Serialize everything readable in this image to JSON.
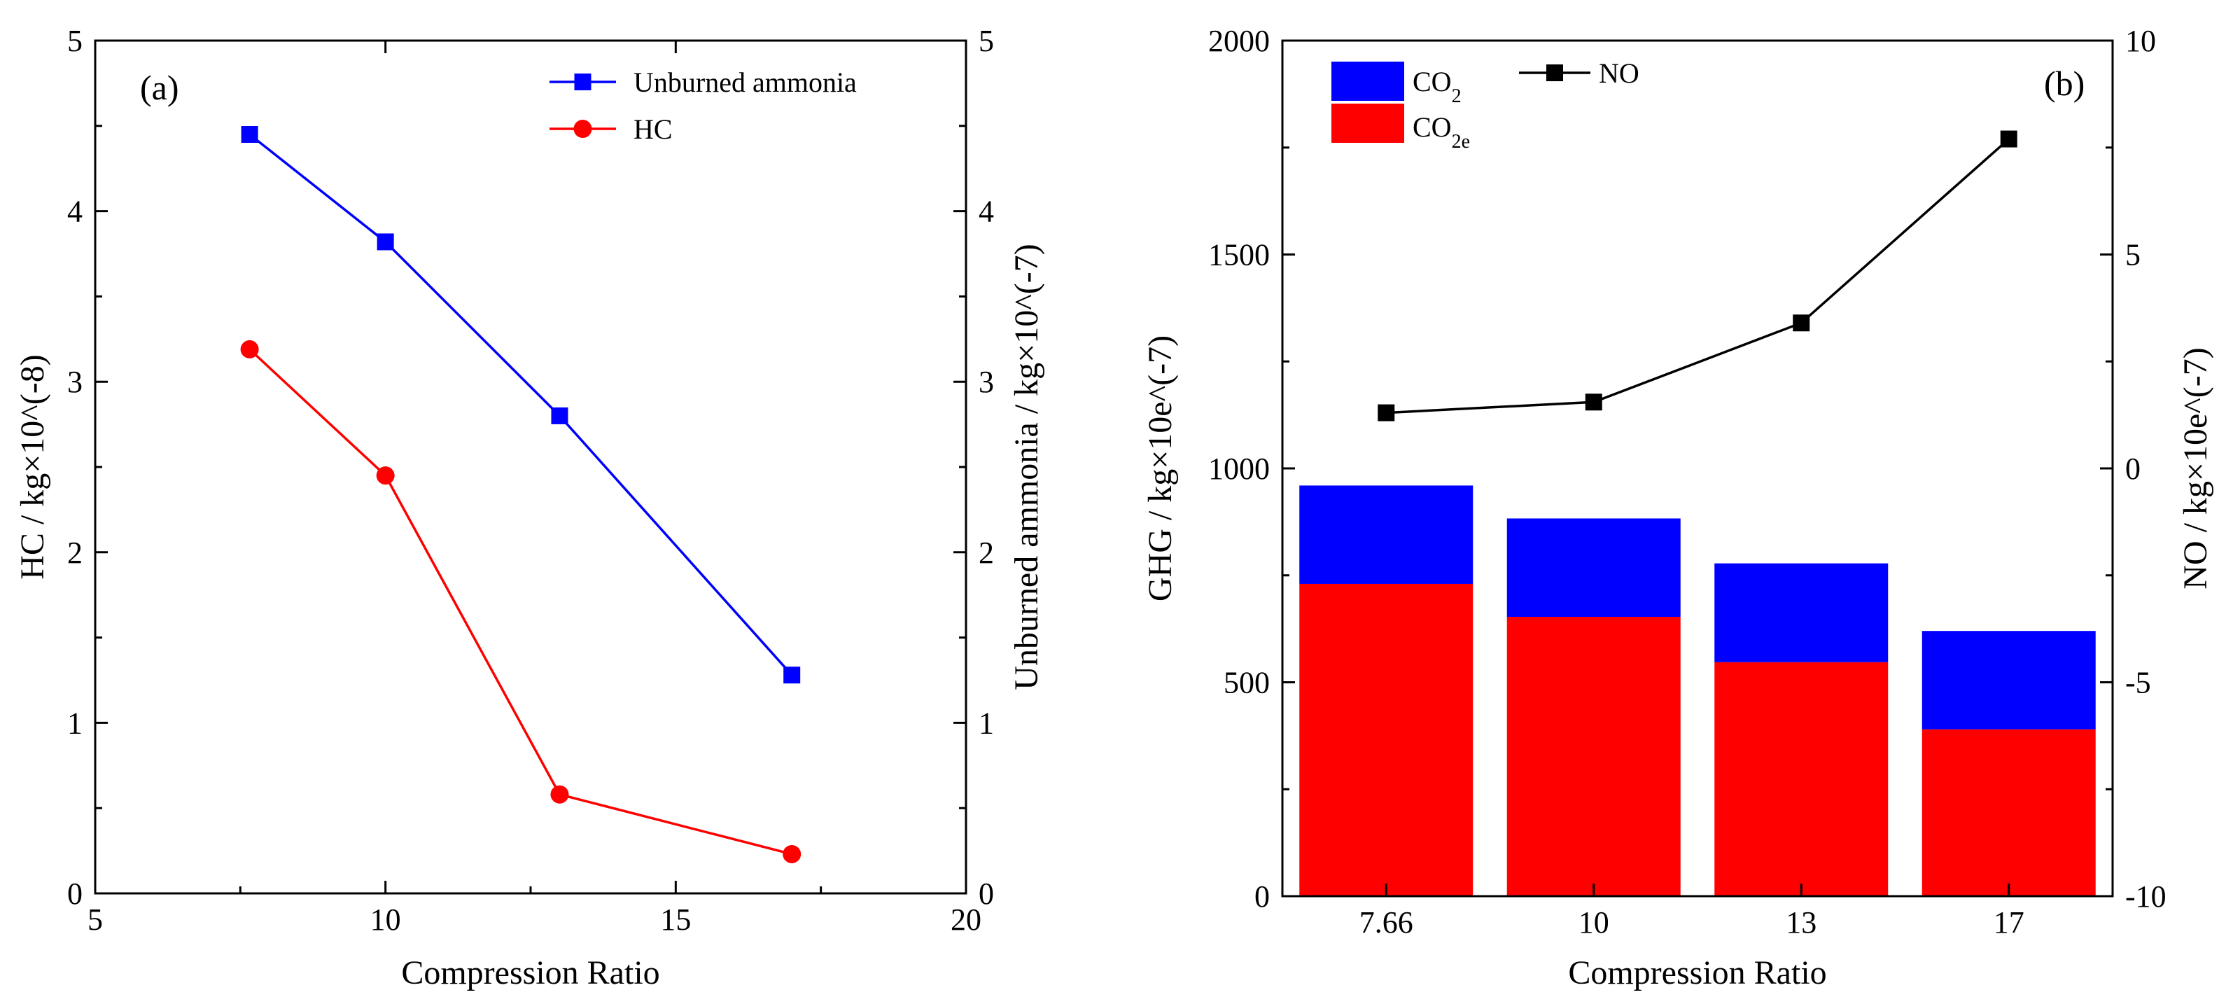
{
  "chart_data": [
    {
      "panel": "(a)",
      "type": "line",
      "xlabel": "Compression Ratio",
      "ylabel_left": "HC / kg×10^(-8)",
      "ylabel_right": "Unburned ammonia / kg×10^(-7)",
      "xlim": [
        5,
        20
      ],
      "ylim_left": [
        0,
        5
      ],
      "ylim_right": [
        0,
        5
      ],
      "x_ticks": [
        "5",
        "10",
        "15",
        "20"
      ],
      "y_ticks_left": [
        "0",
        "1",
        "2",
        "3",
        "4",
        "5"
      ],
      "y_ticks_right": [
        "0",
        "1",
        "2",
        "3",
        "4",
        "5"
      ],
      "series": [
        {
          "name": "Unburned ammonia",
          "axis": "right",
          "marker": "square",
          "color": "#0000ff",
          "x": [
            7.66,
            10,
            13,
            17
          ],
          "values": [
            4.45,
            3.82,
            2.8,
            1.28
          ]
        },
        {
          "name": "HC",
          "axis": "left",
          "marker": "circle",
          "color": "#ff0000",
          "x": [
            7.66,
            10,
            13,
            17
          ],
          "values": [
            3.19,
            2.45,
            0.58,
            0.23
          ]
        }
      ],
      "legend_position": "top-right"
    },
    {
      "panel": "(b)",
      "type": "bar",
      "stacked": true,
      "xlabel": "Compression Ratio",
      "ylabel_left": "GHG / kg×10e^(-7)",
      "ylabel_right": "NO / kg×10e^(-7)",
      "categories": [
        "7.66",
        "10",
        "13",
        "17"
      ],
      "ylim_left": [
        0,
        2000
      ],
      "ylim_right": [
        -10,
        10
      ],
      "y_ticks_left": [
        "0",
        "500",
        "1000",
        "1500",
        "2000"
      ],
      "y_ticks_right": [
        "-10",
        "-5",
        "0",
        "5",
        "10"
      ],
      "series": [
        {
          "name": "CO",
          "sub": "2e",
          "axis": "left",
          "color": "#ff0000",
          "values": [
            730,
            653,
            547,
            390
          ]
        },
        {
          "name": "CO",
          "sub": "2",
          "axis": "left",
          "color": "#0000ff",
          "values": [
            230,
            230,
            231,
            230
          ]
        },
        {
          "name": "NO",
          "type": "line",
          "axis": "right",
          "marker": "square",
          "color": "#000000",
          "values": [
            1.3,
            1.55,
            3.4,
            7.7
          ]
        }
      ],
      "legend_position": "top-left"
    }
  ]
}
